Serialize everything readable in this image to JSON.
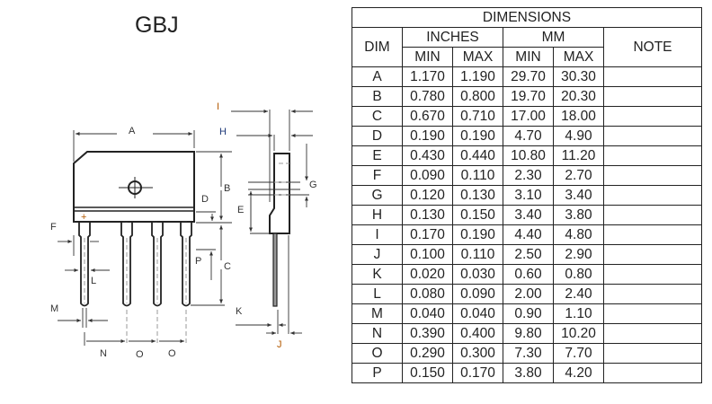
{
  "package_title": "GBJ",
  "drawing": {
    "labels": {
      "A": "A",
      "B": "B",
      "C": "C",
      "D": "D",
      "E": "E",
      "F": "F",
      "G": "G",
      "H": "H",
      "I": "I",
      "J": "J",
      "K": "K",
      "L": "L",
      "M": "M",
      "N": "N",
      "O": "O",
      "P": "P"
    },
    "pin_marks": [
      "+",
      "~",
      "~",
      "−"
    ]
  },
  "table": {
    "title": "DIMENSIONS",
    "dim_header": "DIM",
    "inches_header": "INCHES",
    "mm_header": "MM",
    "note_header": "NOTE",
    "sub_headers": [
      "MIN",
      "MAX",
      "MIN",
      "MAX"
    ],
    "rows": [
      {
        "dim": "A",
        "in_min": "1.170",
        "in_max": "1.190",
        "mm_min": "29.70",
        "mm_max": "30.30",
        "note": ""
      },
      {
        "dim": "B",
        "in_min": "0.780",
        "in_max": "0.800",
        "mm_min": "19.70",
        "mm_max": "20.30",
        "note": ""
      },
      {
        "dim": "C",
        "in_min": "0.670",
        "in_max": "0.710",
        "mm_min": "17.00",
        "mm_max": "18.00",
        "note": ""
      },
      {
        "dim": "D",
        "in_min": "0.190",
        "in_max": "0.190",
        "mm_min": "4.70",
        "mm_max": "4.90",
        "note": ""
      },
      {
        "dim": "E",
        "in_min": "0.430",
        "in_max": "0.440",
        "mm_min": "10.80",
        "mm_max": "11.20",
        "note": ""
      },
      {
        "dim": "F",
        "in_min": "0.090",
        "in_max": "0.110",
        "mm_min": "2.30",
        "mm_max": "2.70",
        "note": ""
      },
      {
        "dim": "G",
        "in_min": "0.120",
        "in_max": "0.130",
        "mm_min": "3.10",
        "mm_max": "3.40",
        "note": ""
      },
      {
        "dim": "H",
        "in_min": "0.130",
        "in_max": "0.150",
        "mm_min": "3.40",
        "mm_max": "3.80",
        "note": ""
      },
      {
        "dim": "I",
        "in_min": "0.170",
        "in_max": "0.190",
        "mm_min": "4.40",
        "mm_max": "4.80",
        "note": ""
      },
      {
        "dim": "J",
        "in_min": "0.100",
        "in_max": "0.110",
        "mm_min": "2.50",
        "mm_max": "2.90",
        "note": ""
      },
      {
        "dim": "K",
        "in_min": "0.020",
        "in_max": "0.030",
        "mm_min": "0.60",
        "mm_max": "0.80",
        "note": ""
      },
      {
        "dim": "L",
        "in_min": "0.080",
        "in_max": "0.090",
        "mm_min": "2.00",
        "mm_max": "2.40",
        "note": ""
      },
      {
        "dim": "M",
        "in_min": "0.040",
        "in_max": "0.040",
        "mm_min": "0.90",
        "mm_max": "1.10",
        "note": ""
      },
      {
        "dim": "N",
        "in_min": "0.390",
        "in_max": "0.400",
        "mm_min": "9.80",
        "mm_max": "10.20",
        "note": ""
      },
      {
        "dim": "O",
        "in_min": "0.290",
        "in_max": "0.300",
        "mm_min": "7.30",
        "mm_max": "7.70",
        "note": ""
      },
      {
        "dim": "P",
        "in_min": "0.150",
        "in_max": "0.170",
        "mm_min": "3.80",
        "mm_max": "4.20",
        "note": ""
      }
    ]
  }
}
